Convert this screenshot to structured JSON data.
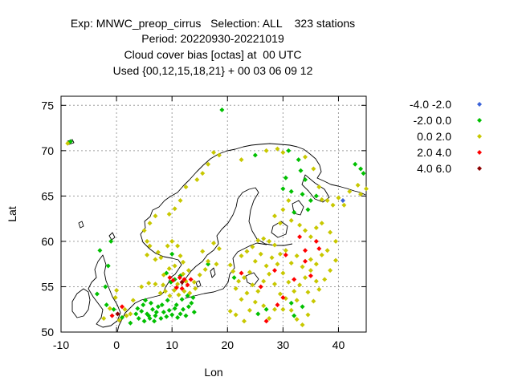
{
  "chart_data": {
    "type": "scatter",
    "title_lines": [
      "Exp: MNWC_preop_cirrus   Selection: ALL    323 stations",
      "Period: 20220930-20221019",
      "Cloud cover bias [octas] at  00 UTC",
      "Used {00,12,15,18,21} + 00 03 06 09 12"
    ],
    "xlabel": "Lon",
    "ylabel": "Lat",
    "xlim": [
      -10,
      45
    ],
    "ylim": [
      50,
      76
    ],
    "xticks": [
      -10,
      0,
      10,
      20,
      30,
      40
    ],
    "yticks": [
      50,
      55,
      60,
      65,
      70,
      75
    ],
    "grid": true,
    "legend_position": "right",
    "series": [
      {
        "name": "-4.0 -2.0",
        "color": "#3a62d8",
        "points": [
          [
            40.8,
            64.5
          ]
        ]
      },
      {
        "name": "-2.0 0.0",
        "color": "#00c000",
        "points": [
          [
            -8.3,
            71.0
          ],
          [
            19.0,
            74.5
          ],
          [
            -3.0,
            59.0
          ],
          [
            -1.0,
            60.0
          ],
          [
            -1.5,
            57.3
          ],
          [
            -2.0,
            55.0
          ],
          [
            -3.5,
            54.2
          ],
          [
            -1.8,
            53.0
          ],
          [
            -0.5,
            52.5
          ],
          [
            1.0,
            51.6
          ],
          [
            2.5,
            51.0
          ],
          [
            3.5,
            52.0
          ],
          [
            4.0,
            51.5
          ],
          [
            4.5,
            52.3
          ],
          [
            5.0,
            51.2
          ],
          [
            5.5,
            52.0
          ],
          [
            6.0,
            51.5
          ],
          [
            6.5,
            52.5
          ],
          [
            7.0,
            51.8
          ],
          [
            4.8,
            53.0
          ],
          [
            5.2,
            53.5
          ],
          [
            6.2,
            53.2
          ],
          [
            7.5,
            52.8
          ],
          [
            3.8,
            52.6
          ],
          [
            8.0,
            51.5
          ],
          [
            8.5,
            52.2
          ],
          [
            9.0,
            51.7
          ],
          [
            9.5,
            52.4
          ],
          [
            10.0,
            51.9
          ],
          [
            10.5,
            52.6
          ],
          [
            11.0,
            51.6
          ],
          [
            11.5,
            52.0
          ],
          [
            12.0,
            52.5
          ],
          [
            12.5,
            51.8
          ],
          [
            13.0,
            52.8
          ],
          [
            13.5,
            53.2
          ],
          [
            14.0,
            52.2
          ],
          [
            13.8,
            53.8
          ],
          [
            12.8,
            54.0
          ],
          [
            11.8,
            53.6
          ],
          [
            10.8,
            53.0
          ],
          [
            9.2,
            53.5
          ],
          [
            8.2,
            53.0
          ],
          [
            6.8,
            51.2
          ],
          [
            7.2,
            52.2
          ],
          [
            5.8,
            51.8
          ],
          [
            9.8,
            55.5
          ],
          [
            10.5,
            55.8
          ],
          [
            11.5,
            56.2
          ],
          [
            9.0,
            56.5
          ],
          [
            10.0,
            58.6
          ],
          [
            16.5,
            57.5
          ],
          [
            21.2,
            56.0
          ],
          [
            27.0,
            52.5
          ],
          [
            25.5,
            52.0
          ],
          [
            32.0,
            51.8
          ],
          [
            33.5,
            52.8
          ],
          [
            31.5,
            53.2
          ],
          [
            25.0,
            69.5
          ],
          [
            31.0,
            70.0
          ],
          [
            32.8,
            69.0
          ],
          [
            33.2,
            67.8
          ],
          [
            34.0,
            66.8
          ],
          [
            30.5,
            67.0
          ],
          [
            31.5,
            65.5
          ],
          [
            30.0,
            65.8
          ],
          [
            36.0,
            65.0
          ],
          [
            35.0,
            64.5
          ],
          [
            32.0,
            63.2
          ],
          [
            34.5,
            63.5
          ],
          [
            44.0,
            68.0
          ],
          [
            43.0,
            68.5
          ],
          [
            44.5,
            67.5
          ],
          [
            33.5,
            65.2
          ]
        ]
      },
      {
        "name": "0.0 2.0",
        "color": "#c8c800",
        "points": [
          [
            -8.8,
            70.8
          ],
          [
            17.5,
            69.8
          ],
          [
            18.5,
            69.5
          ],
          [
            16.5,
            68.5
          ],
          [
            15.5,
            67.5
          ],
          [
            14.5,
            66.8
          ],
          [
            12.5,
            66.0
          ],
          [
            11.5,
            64.5
          ],
          [
            10.5,
            63.6
          ],
          [
            9.5,
            63.0
          ],
          [
            7.0,
            62.8
          ],
          [
            6.0,
            62.0
          ],
          [
            5.0,
            61.2
          ],
          [
            5.5,
            60.0
          ],
          [
            6.0,
            59.5
          ],
          [
            7.5,
            58.8
          ],
          [
            5.5,
            58.5
          ],
          [
            7.0,
            58.0
          ],
          [
            8.0,
            58.2
          ],
          [
            9.2,
            59.5
          ],
          [
            10.0,
            60.0
          ],
          [
            11.0,
            59.5
          ],
          [
            11.5,
            58.4
          ],
          [
            12.0,
            57.7
          ],
          [
            10.5,
            57.3
          ],
          [
            9.5,
            57.0
          ],
          [
            8.5,
            56.3
          ],
          [
            11.0,
            55.3
          ],
          [
            12.5,
            55.6
          ],
          [
            14.0,
            55.5
          ],
          [
            15.0,
            56.3
          ],
          [
            13.0,
            56.8
          ],
          [
            12.0,
            56.4
          ],
          [
            16.0,
            56.9
          ],
          [
            16.5,
            57.8
          ],
          [
            18.0,
            57.5
          ],
          [
            18.5,
            59.2
          ],
          [
            17.5,
            59.8
          ],
          [
            15.5,
            58.9
          ],
          [
            22.5,
            69.0
          ],
          [
            27.0,
            70.0
          ],
          [
            29.0,
            70.2
          ],
          [
            30.0,
            69.8
          ],
          [
            34.0,
            69.3
          ],
          [
            35.5,
            68.0
          ],
          [
            36.5,
            66.0
          ],
          [
            37.0,
            64.6
          ],
          [
            38.0,
            64.5
          ],
          [
            39.0,
            64.0
          ],
          [
            40.0,
            64.8
          ],
          [
            41.0,
            64.0
          ],
          [
            42.0,
            65.5
          ],
          [
            43.5,
            66.2
          ],
          [
            44.0,
            65.2
          ],
          [
            45.0,
            65.8
          ],
          [
            31.0,
            64.5
          ],
          [
            30.0,
            63.5
          ],
          [
            28.5,
            62.8
          ],
          [
            29.5,
            62.0
          ],
          [
            31.5,
            62.3
          ],
          [
            33.0,
            61.8
          ],
          [
            34.0,
            61.2
          ],
          [
            35.0,
            60.5
          ],
          [
            36.0,
            61.5
          ],
          [
            37.0,
            62.0
          ],
          [
            38.5,
            61.0
          ],
          [
            39.5,
            60.0
          ],
          [
            38.0,
            59.0
          ],
          [
            37.0,
            58.5
          ],
          [
            36.0,
            57.5
          ],
          [
            35.0,
            56.8
          ],
          [
            34.0,
            56.0
          ],
          [
            33.0,
            55.2
          ],
          [
            32.0,
            54.5
          ],
          [
            31.0,
            55.5
          ],
          [
            30.0,
            56.5
          ],
          [
            29.0,
            57.5
          ],
          [
            28.0,
            58.2
          ],
          [
            27.0,
            57.3
          ],
          [
            26.0,
            58.6
          ],
          [
            25.0,
            57.8
          ],
          [
            24.0,
            56.6
          ],
          [
            23.0,
            56.0
          ],
          [
            22.0,
            55.6
          ],
          [
            21.5,
            54.8
          ],
          [
            23.5,
            54.3
          ],
          [
            24.5,
            55.2
          ],
          [
            25.5,
            54.5
          ],
          [
            26.5,
            55.6
          ],
          [
            27.5,
            56.4
          ],
          [
            28.5,
            55.3
          ],
          [
            29.5,
            54.2
          ],
          [
            30.5,
            53.7
          ],
          [
            31.5,
            52.4
          ],
          [
            32.5,
            51.4
          ],
          [
            33.5,
            50.8
          ],
          [
            34.5,
            51.9
          ],
          [
            35.5,
            53.4
          ],
          [
            36.5,
            54.7
          ],
          [
            37.5,
            55.8
          ],
          [
            38.5,
            56.8
          ],
          [
            39.5,
            57.9
          ],
          [
            28.5,
            52.5
          ],
          [
            27.5,
            51.5
          ],
          [
            26.5,
            52.9
          ],
          [
            25.0,
            53.3
          ],
          [
            24.0,
            52.4
          ],
          [
            22.5,
            53.6
          ],
          [
            20.5,
            52.3
          ],
          [
            21.5,
            51.9
          ],
          [
            23.0,
            51.2
          ],
          [
            30.0,
            52.5
          ],
          [
            32.5,
            53.5
          ],
          [
            34.5,
            54.4
          ],
          [
            36.0,
            55.6
          ],
          [
            35.0,
            58.0
          ],
          [
            33.5,
            57.2
          ],
          [
            32.5,
            58.4
          ],
          [
            31.5,
            57.6
          ],
          [
            30.5,
            59.0
          ],
          [
            29.5,
            58.6
          ],
          [
            28.5,
            59.6
          ],
          [
            27.5,
            60.0
          ],
          [
            26.5,
            60.3
          ],
          [
            25.5,
            60.1
          ],
          [
            24.5,
            59.4
          ],
          [
            23.5,
            58.9
          ],
          [
            22.5,
            58.4
          ],
          [
            21.0,
            56.7
          ],
          [
            20.5,
            57.4
          ],
          [
            1.5,
            52.5
          ],
          [
            2.5,
            52.0
          ],
          [
            0.5,
            51.3
          ],
          [
            1.8,
            51.8
          ],
          [
            -0.2,
            53.8
          ],
          [
            -1.2,
            52.6
          ],
          [
            -2.3,
            51.5
          ],
          [
            0.0,
            54.6
          ],
          [
            3.0,
            53.5
          ],
          [
            8.8,
            54.5
          ],
          [
            9.6,
            54.0
          ],
          [
            10.4,
            54.6
          ],
          [
            11.2,
            54.1
          ],
          [
            12.2,
            54.5
          ],
          [
            13.2,
            54.3
          ],
          [
            14.2,
            54.8
          ],
          [
            8.4,
            55.2
          ],
          [
            7.9,
            54.3
          ],
          [
            4.5,
            55.0
          ],
          [
            5.8,
            55.4
          ],
          [
            7.0,
            55.3
          ]
        ]
      },
      {
        "name": "2.0 4.0",
        "color": "#ff0000",
        "points": [
          [
            10.2,
            55.7
          ],
          [
            10.8,
            54.9
          ],
          [
            11.4,
            56.0
          ],
          [
            12.2,
            55.8
          ],
          [
            12.8,
            55.2
          ],
          [
            13.4,
            55.8
          ],
          [
            11.8,
            54.8
          ],
          [
            9.6,
            56.0
          ],
          [
            1.0,
            52.8
          ],
          [
            -0.8,
            51.8
          ],
          [
            22.5,
            56.5
          ],
          [
            28.5,
            56.8
          ],
          [
            30.5,
            58.5
          ],
          [
            33.0,
            60.5
          ],
          [
            34.0,
            59.0
          ],
          [
            36.0,
            60.0
          ],
          [
            35.0,
            56.2
          ],
          [
            30.0,
            53.8
          ],
          [
            29.0,
            53.0
          ],
          [
            27.0,
            51.2
          ],
          [
            32.0,
            55.8
          ],
          [
            34.0,
            57.8
          ],
          [
            26.0,
            55.0
          ],
          [
            36.5,
            59.2
          ]
        ]
      },
      {
        "name": "4.0 6.0",
        "color": "#8b0000",
        "points": [
          [
            11.8,
            55.5
          ],
          [
            0.2,
            52.0
          ]
        ]
      }
    ]
  }
}
